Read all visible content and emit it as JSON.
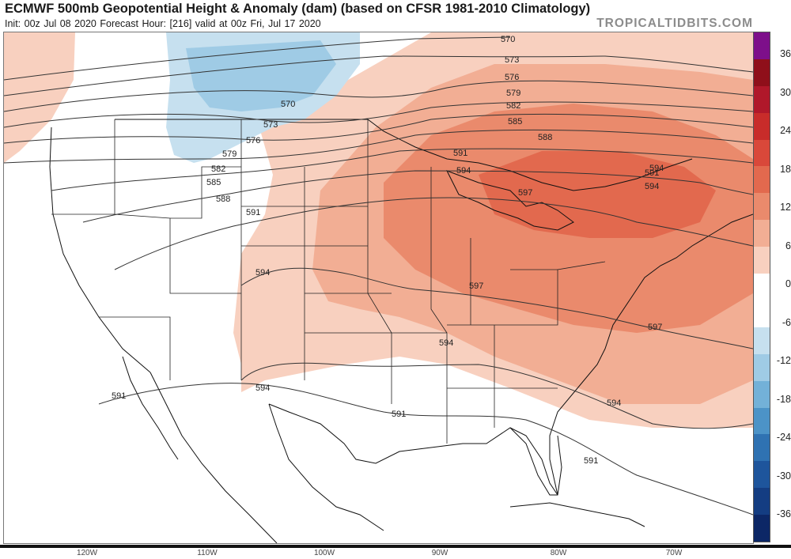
{
  "header": {
    "title": "ECMWF 500mb Geopotential Height & Anomaly (dam) (based on CFSR 1981-2010 Climatology)",
    "subtitle": "Init: 00z Jul 08 2020   Forecast Hour: [216]   valid at 00z Fri, Jul 17 2020",
    "brand": "TROPICALTIDBITS.COM"
  },
  "colorbar": {
    "labels": [
      "36",
      "30",
      "24",
      "18",
      "12",
      "6",
      "0",
      "-6",
      "-12",
      "-18",
      "-24",
      "-30",
      "-36"
    ],
    "colors": [
      "#7d0f8a",
      "#8f0f1a",
      "#b0182a",
      "#c82c2a",
      "#d9483a",
      "#e2694e",
      "#ea8a6c",
      "#f2ae94",
      "#f8d0bf",
      "#ffffff",
      "#ffffff",
      "#c6e0ef",
      "#9fcbe5",
      "#73b1d8",
      "#4c93c7",
      "#2f72b2",
      "#1e559c",
      "#143d82",
      "#0c2766"
    ]
  },
  "contours": {
    "labels": [
      {
        "text": "570"
      },
      {
        "text": "573"
      },
      {
        "text": "576"
      },
      {
        "text": "579"
      },
      {
        "text": "582"
      },
      {
        "text": "585"
      },
      {
        "text": "588"
      },
      {
        "text": "591"
      },
      {
        "text": "594"
      },
      {
        "text": "597"
      },
      {
        "text": "570"
      },
      {
        "text": "573"
      },
      {
        "text": "576"
      },
      {
        "text": "579"
      },
      {
        "text": "582"
      },
      {
        "text": "585"
      },
      {
        "text": "588"
      },
      {
        "text": "591"
      },
      {
        "text": "594"
      },
      {
        "text": "597"
      },
      {
        "text": "594"
      },
      {
        "text": "594"
      },
      {
        "text": "597"
      },
      {
        "text": "594"
      },
      {
        "text": "591"
      },
      {
        "text": "591"
      },
      {
        "text": "591"
      },
      {
        "text": "594"
      },
      {
        "text": "591"
      },
      {
        "text": "594"
      }
    ]
  },
  "longitudes": [
    "120W",
    "110W",
    "100W",
    "90W",
    "80W",
    "70W"
  ],
  "colors": {
    "positive_light": "#f8d0bf",
    "positive_mid": "#f2ae94",
    "positive_strong": "#ea8a6c",
    "positive_max": "#e2694e",
    "negative_light": "#c6e0ef",
    "negative_mid": "#9fcbe5"
  }
}
